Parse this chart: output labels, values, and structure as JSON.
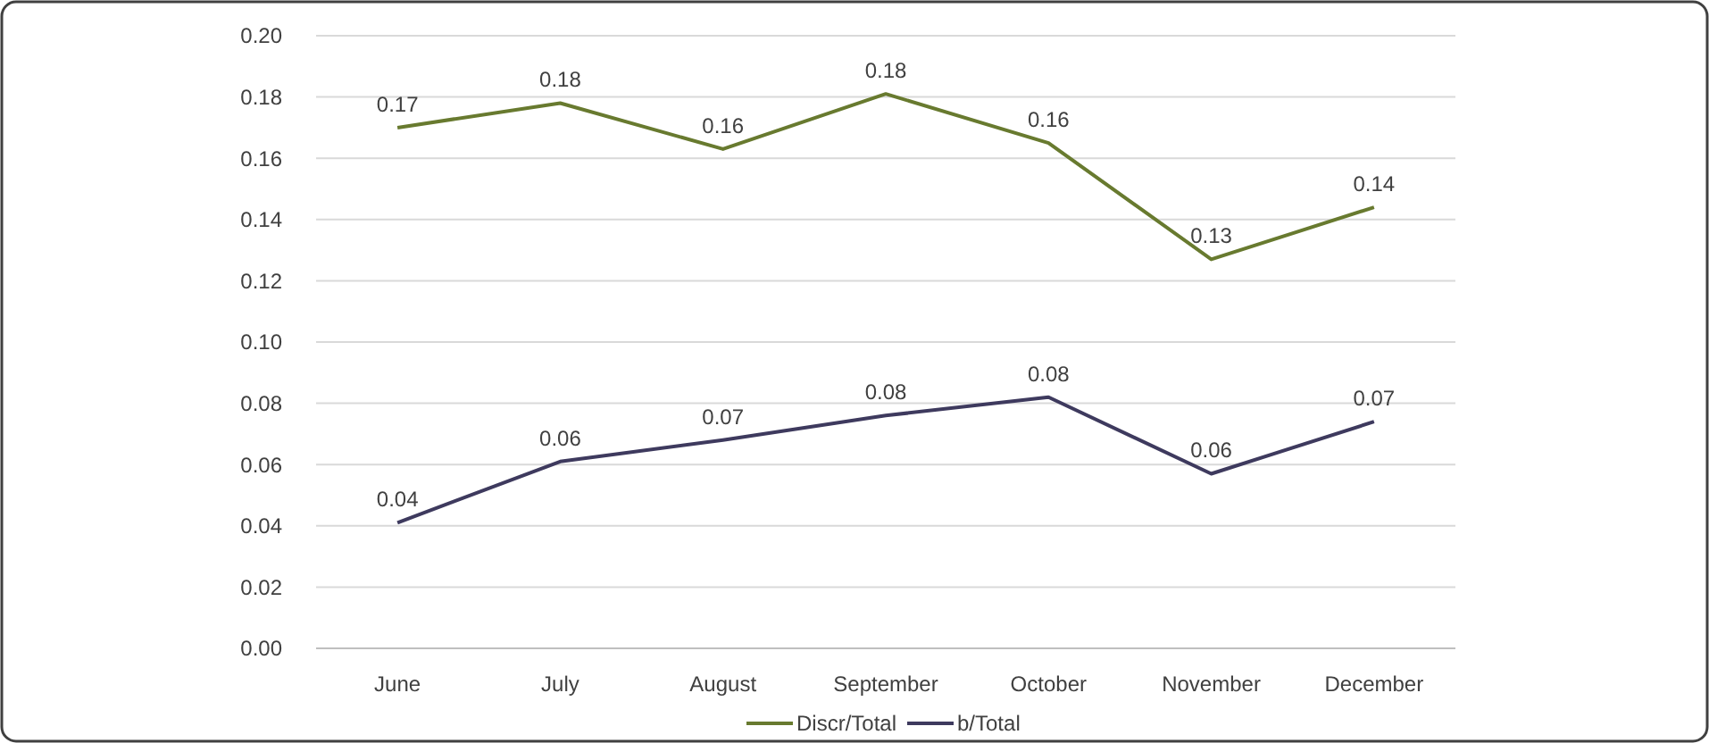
{
  "chart_data": {
    "type": "line",
    "categories": [
      "June",
      "July",
      "August",
      "September",
      "October",
      "November",
      "December"
    ],
    "series": [
      {
        "name": "Discr/Total",
        "color": "#687a2f",
        "values": [
          0.17,
          0.178,
          0.163,
          0.181,
          0.165,
          0.127,
          0.144
        ],
        "value_labels": [
          "0.17",
          "0.18",
          "0.16",
          "0.18",
          "0.16",
          "0.13",
          "0.14"
        ]
      },
      {
        "name": "b/Total",
        "color": "#3e3a5e",
        "values": [
          0.041,
          0.061,
          0.068,
          0.076,
          0.082,
          0.057,
          0.074
        ],
        "value_labels": [
          "0.04",
          "0.06",
          "0.07",
          "0.08",
          "0.08",
          "0.06",
          "0.07"
        ]
      }
    ],
    "ylim": [
      0,
      0.2
    ],
    "yticks": [
      {
        "value": 0,
        "label": "0.00"
      },
      {
        "value": 0.02,
        "label": "0.02"
      },
      {
        "value": 0.04,
        "label": "0.04"
      },
      {
        "value": 0.06,
        "label": "0.06"
      },
      {
        "value": 0.08,
        "label": "0.08"
      },
      {
        "value": 0.1,
        "label": "0.10"
      },
      {
        "value": 0.12,
        "label": "0.12"
      },
      {
        "value": 0.14,
        "label": "0.14"
      },
      {
        "value": 0.16,
        "label": "0.16"
      },
      {
        "value": 0.18,
        "label": "0.18"
      },
      {
        "value": 0.2,
        "label": "0.20"
      }
    ],
    "grid": "y",
    "legend": "bottom",
    "marker": "none",
    "line_style": "solid"
  }
}
